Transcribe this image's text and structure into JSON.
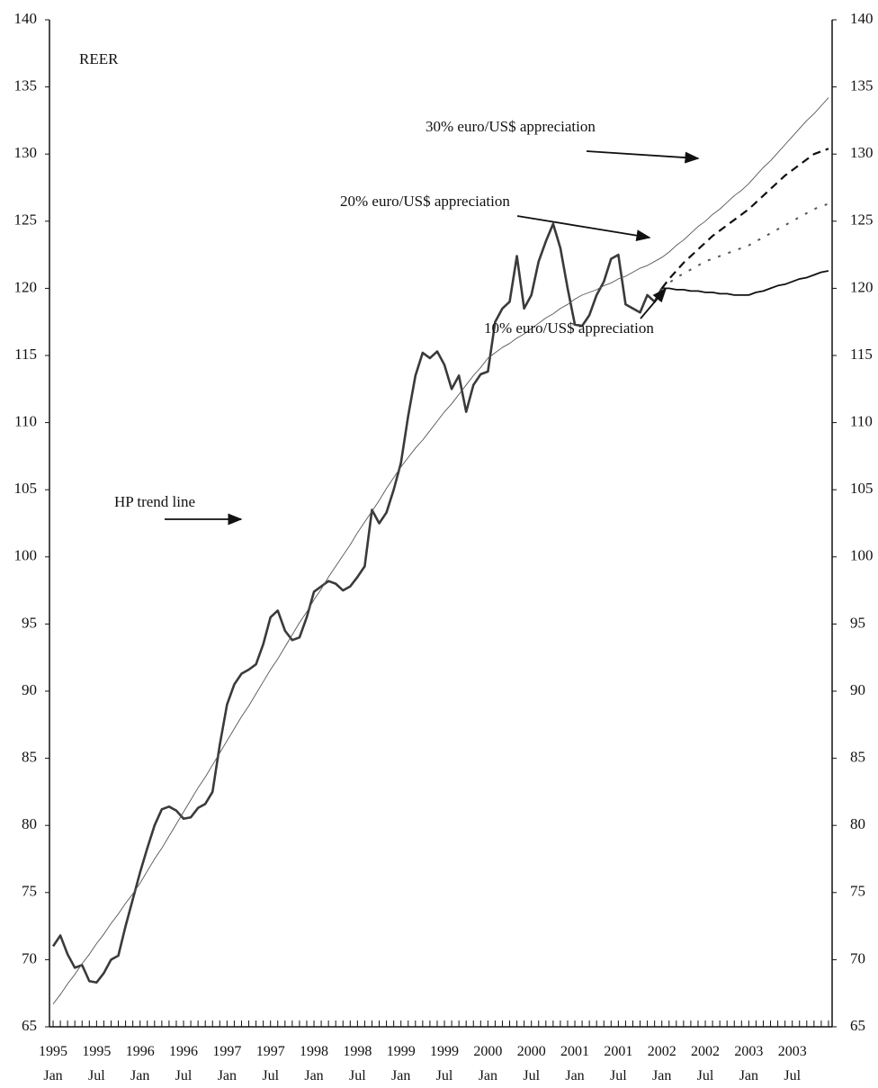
{
  "chart_data": {
    "type": "line",
    "categories": [
      "1995 Jan",
      null,
      null,
      null,
      null,
      null,
      "1995 Jul",
      null,
      null,
      null,
      null,
      null,
      "1996 Jan",
      null,
      null,
      null,
      null,
      null,
      "1996 Jul",
      null,
      null,
      null,
      null,
      null,
      "1997 Jan",
      null,
      null,
      null,
      null,
      null,
      "1997 Jul",
      null,
      null,
      null,
      null,
      null,
      "1998 Jan",
      null,
      null,
      null,
      null,
      null,
      "1998 Jul",
      null,
      null,
      null,
      null,
      null,
      "1999 Jan",
      null,
      null,
      null,
      null,
      null,
      "1999 Jul",
      null,
      null,
      null,
      null,
      null,
      "2000 Jan",
      null,
      null,
      null,
      null,
      null,
      "2000 Jul",
      null,
      null,
      null,
      null,
      null,
      "2001 Jan",
      null,
      null,
      null,
      null,
      null,
      "2001 Jul",
      null,
      null,
      null,
      null,
      null,
      "2002 Jan",
      null,
      null,
      null,
      null,
      null,
      "2002 Jul",
      null,
      null,
      null,
      null,
      null,
      "2003 Jan",
      null,
      null,
      null,
      null,
      null,
      "2003 Jul",
      null,
      null,
      null,
      null,
      null
    ],
    "series": [
      {
        "name": "REER",
        "color": "#3a3a3a",
        "style": "thick",
        "values": [
          71.0,
          71.8,
          70.4,
          69.4,
          69.6,
          68.4,
          68.3,
          69.0,
          70.0,
          70.3,
          72.5,
          74.5,
          76.5,
          78.3,
          80.0,
          81.2,
          81.4,
          81.1,
          80.5,
          80.6,
          81.3,
          81.6,
          82.5,
          86.0,
          89.0,
          90.5,
          91.3,
          91.6,
          92.0,
          93.5,
          95.5,
          96.0,
          94.5,
          93.8,
          94.0,
          95.5,
          97.4,
          97.8,
          98.2,
          98.0,
          97.5,
          97.8,
          98.5,
          99.3,
          103.5,
          102.5,
          103.3,
          105.0,
          107.0,
          110.5,
          113.5,
          115.2,
          114.8,
          115.3,
          114.3,
          112.5,
          113.5,
          110.8,
          112.8,
          113.6,
          113.8,
          117.5,
          118.5,
          119.0,
          122.4,
          118.5,
          119.5,
          122.0,
          123.5,
          124.8,
          123.0,
          120.0,
          117.3,
          117.2,
          118.0,
          119.5,
          120.5,
          122.2,
          122.5,
          118.8,
          118.5,
          118.2,
          119.5,
          119.0,
          120.0,
          null,
          null,
          null,
          null,
          null,
          null,
          null,
          null,
          null,
          null,
          null,
          null,
          null,
          null,
          null,
          null,
          null,
          null,
          null,
          null,
          null,
          null,
          null
        ]
      },
      {
        "name": "HP trend line",
        "color": "#555555",
        "style": "thin",
        "values": [
          66.7,
          67.4,
          68.2,
          68.9,
          69.7,
          70.4,
          71.2,
          71.9,
          72.7,
          73.4,
          74.2,
          74.9,
          75.7,
          76.6,
          77.5,
          78.3,
          79.2,
          80.1,
          81.0,
          81.9,
          82.8,
          83.6,
          84.5,
          85.4,
          86.3,
          87.2,
          88.1,
          88.9,
          89.8,
          90.7,
          91.6,
          92.4,
          93.3,
          94.2,
          95.1,
          95.9,
          96.8,
          97.6,
          98.5,
          99.3,
          100.1,
          100.9,
          101.8,
          102.6,
          103.4,
          104.2,
          105.1,
          105.9,
          106.7,
          107.4,
          108.1,
          108.7,
          109.4,
          110.1,
          110.8,
          111.4,
          112.1,
          112.8,
          113.5,
          114.1,
          114.8,
          115.2,
          115.6,
          115.9,
          116.3,
          116.6,
          117.0,
          117.4,
          117.8,
          118.1,
          118.5,
          118.8,
          119.2,
          119.5,
          119.7,
          119.9,
          120.2,
          120.4,
          120.7,
          120.9,
          121.2,
          121.5,
          121.7,
          122.0,
          122.3,
          122.7,
          123.2,
          123.6,
          124.1,
          124.6,
          125.0,
          125.5,
          125.9,
          126.4,
          126.9,
          127.3,
          127.8,
          128.4,
          129.0,
          129.5,
          130.1,
          130.7,
          131.3,
          131.9,
          132.5,
          133.0,
          133.6,
          134.2
        ]
      },
      {
        "name": "10% euro/US$ appreciation",
        "color": "#111111",
        "style": "solid",
        "values": [
          null,
          null,
          null,
          null,
          null,
          null,
          null,
          null,
          null,
          null,
          null,
          null,
          null,
          null,
          null,
          null,
          null,
          null,
          null,
          null,
          null,
          null,
          null,
          null,
          null,
          null,
          null,
          null,
          null,
          null,
          null,
          null,
          null,
          null,
          null,
          null,
          null,
          null,
          null,
          null,
          null,
          null,
          null,
          null,
          null,
          null,
          null,
          null,
          null,
          null,
          null,
          null,
          null,
          null,
          null,
          null,
          null,
          null,
          null,
          null,
          null,
          null,
          null,
          null,
          null,
          null,
          null,
          null,
          null,
          null,
          null,
          null,
          null,
          null,
          null,
          null,
          null,
          null,
          null,
          null,
          null,
          null,
          null,
          null,
          120.0,
          120.0,
          119.9,
          119.9,
          119.8,
          119.8,
          119.7,
          119.7,
          119.6,
          119.6,
          119.5,
          119.5,
          119.5,
          119.7,
          119.8,
          120.0,
          120.2,
          120.3,
          120.5,
          120.7,
          120.8,
          121.0,
          121.2,
          121.3
        ]
      },
      {
        "name": "20% euro/US$ appreciation",
        "color": "#555555",
        "style": "dotted",
        "values": [
          null,
          null,
          null,
          null,
          null,
          null,
          null,
          null,
          null,
          null,
          null,
          null,
          null,
          null,
          null,
          null,
          null,
          null,
          null,
          null,
          null,
          null,
          null,
          null,
          null,
          null,
          null,
          null,
          null,
          null,
          null,
          null,
          null,
          null,
          null,
          null,
          null,
          null,
          null,
          null,
          null,
          null,
          null,
          null,
          null,
          null,
          null,
          null,
          null,
          null,
          null,
          null,
          null,
          null,
          null,
          null,
          null,
          null,
          null,
          null,
          null,
          null,
          null,
          null,
          null,
          null,
          null,
          null,
          null,
          null,
          null,
          null,
          null,
          null,
          null,
          null,
          null,
          null,
          null,
          null,
          null,
          null,
          null,
          null,
          120.0,
          120.4,
          120.8,
          121.1,
          121.4,
          121.7,
          122.0,
          122.2,
          122.4,
          122.6,
          122.8,
          123.0,
          123.2,
          123.5,
          123.8,
          124.1,
          124.4,
          124.7,
          125.0,
          125.3,
          125.6,
          125.9,
          126.1,
          126.3
        ]
      },
      {
        "name": "30% euro/US$ appreciation",
        "color": "#111111",
        "style": "dashed",
        "values": [
          null,
          null,
          null,
          null,
          null,
          null,
          null,
          null,
          null,
          null,
          null,
          null,
          null,
          null,
          null,
          null,
          null,
          null,
          null,
          null,
          null,
          null,
          null,
          null,
          null,
          null,
          null,
          null,
          null,
          null,
          null,
          null,
          null,
          null,
          null,
          null,
          null,
          null,
          null,
          null,
          null,
          null,
          null,
          null,
          null,
          null,
          null,
          null,
          null,
          null,
          null,
          null,
          null,
          null,
          null,
          null,
          null,
          null,
          null,
          null,
          null,
          null,
          null,
          null,
          null,
          null,
          null,
          null,
          null,
          null,
          null,
          null,
          null,
          null,
          null,
          null,
          null,
          null,
          null,
          null,
          null,
          null,
          null,
          null,
          120.0,
          120.7,
          121.3,
          121.9,
          122.4,
          122.9,
          123.4,
          123.9,
          124.3,
          124.7,
          125.1,
          125.5,
          125.9,
          126.4,
          126.9,
          127.4,
          127.9,
          128.4,
          128.8,
          129.2,
          129.6,
          130.0,
          130.2,
          130.4
        ]
      }
    ],
    "ylim": [
      65,
      140
    ],
    "yticks": [
      65,
      70,
      75,
      80,
      85,
      90,
      95,
      100,
      105,
      110,
      115,
      120,
      125,
      130,
      135,
      140
    ],
    "y2lim": [
      65,
      140
    ],
    "y2ticks": [
      65,
      70,
      75,
      80,
      85,
      90,
      95,
      100,
      105,
      110,
      115,
      120,
      125,
      130,
      135,
      140
    ],
    "grid": false
  }
}
